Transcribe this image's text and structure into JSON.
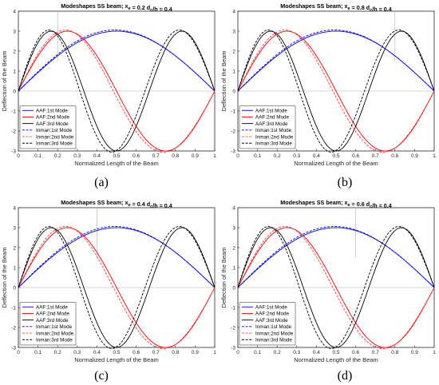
{
  "chart_data": [
    {
      "type": "line",
      "title": "Modeshapes SS beam; x",
      "title_sub": "e",
      "title_mid": " = 0.2   d",
      "title_sub2": "c",
      "title_tail": "/h = 0.4",
      "xlabel": "Normalized Length of the Beam",
      "ylabel": "Deflection of the Beam",
      "xlim": [
        0,
        1
      ],
      "ylim": [
        -3,
        4
      ],
      "xticks": [
        "0",
        "0.1",
        "0.2",
        "0.3",
        "0.4",
        "0.5",
        "0.6",
        "0.7",
        "0.8",
        "0.9",
        "1"
      ],
      "yticks": [
        "-3",
        "-2",
        "-1",
        "0",
        "1",
        "2",
        "3",
        "4"
      ],
      "grid": false,
      "legend_position": "lower-left",
      "crack_x": 0.2,
      "amplitude": 3,
      "series": [
        {
          "name": "AAF:1st Mode",
          "mode": 1,
          "color": "#0000ff",
          "dash": "solid"
        },
        {
          "name": "AAF:2nd Mode",
          "mode": 2,
          "color": "#ff0000",
          "dash": "solid"
        },
        {
          "name": "AAF:3rd Mode",
          "mode": 3,
          "color": "#000000",
          "dash": "solid"
        },
        {
          "name": "Inman:1st Mode",
          "mode": 1,
          "color": "#0000ff",
          "dash": "dashed"
        },
        {
          "name": "Inman:2nd Mode",
          "mode": 2,
          "color": "#ff4040",
          "dash": "dashed"
        },
        {
          "name": "Inman:3rd Mode",
          "mode": 3,
          "color": "#000000",
          "dash": "dashed"
        }
      ]
    },
    {
      "type": "line",
      "title": "Modeshapes SS beam; x",
      "title_sub": "e",
      "title_mid": " = 0.8   d",
      "title_sub2": "c",
      "title_tail": "/h = 0.4",
      "xlabel": "Normalized Length of the Beam",
      "ylabel": "Deflection of the Beam",
      "xlim": [
        0,
        1
      ],
      "ylim": [
        -3,
        4
      ],
      "xticks": [
        "0",
        "0.1",
        "0.2",
        "0.3",
        "0.4",
        "0.5",
        "0.6",
        "0.7",
        "0.8",
        "0.9",
        "1"
      ],
      "yticks": [
        "-3",
        "-2",
        "-1",
        "0",
        "1",
        "2",
        "3",
        "4"
      ],
      "grid": false,
      "legend_position": "lower-left",
      "crack_x": 0.8,
      "amplitude": 3,
      "series": [
        {
          "name": "AAF:1st Mode",
          "mode": 1,
          "color": "#0000ff",
          "dash": "solid"
        },
        {
          "name": "AAF:2nd Mode",
          "mode": 2,
          "color": "#ff0000",
          "dash": "solid"
        },
        {
          "name": "AAF:3rd Mode",
          "mode": 3,
          "color": "#000000",
          "dash": "solid"
        },
        {
          "name": "Inman:1st Mode",
          "mode": 1,
          "color": "#0000ff",
          "dash": "dashed"
        },
        {
          "name": "Inman:2nd Mode",
          "mode": 2,
          "color": "#ff4040",
          "dash": "dashed"
        },
        {
          "name": "Inman:3rd Mode",
          "mode": 3,
          "color": "#000000",
          "dash": "dashed"
        }
      ]
    },
    {
      "type": "line",
      "title": "Modeshapes SS beam; x",
      "title_sub": "e",
      "title_mid": " = 0.4   d",
      "title_sub2": "c",
      "title_tail": "/h = 0.4",
      "xlabel": "Normalized Length of the Beam",
      "ylabel": "Deflection of the Beam",
      "xlim": [
        0,
        1
      ],
      "ylim": [
        -3,
        4
      ],
      "xticks": [
        "0",
        "0.1",
        "0.2",
        "0.3",
        "0.4",
        "0.5",
        "0.6",
        "0.7",
        "0.8",
        "0.9",
        "1"
      ],
      "yticks": [
        "-3",
        "-2",
        "-1",
        "0",
        "1",
        "2",
        "3",
        "4"
      ],
      "grid": false,
      "legend_position": "lower-left",
      "crack_x": 0.4,
      "amplitude": 3,
      "series": [
        {
          "name": "AAF:1st Mode",
          "mode": 1,
          "color": "#0000ff",
          "dash": "solid"
        },
        {
          "name": "AAF:2nd Mode",
          "mode": 2,
          "color": "#ff0000",
          "dash": "solid"
        },
        {
          "name": "AAF:3rd Mode",
          "mode": 3,
          "color": "#000000",
          "dash": "solid"
        },
        {
          "name": "Inman:1st Mode",
          "mode": 1,
          "color": "#0000ff",
          "dash": "dashed"
        },
        {
          "name": "Inman:2nd Mode",
          "mode": 2,
          "color": "#ff4040",
          "dash": "dashed"
        },
        {
          "name": "Inman:3rd Mode",
          "mode": 3,
          "color": "#000000",
          "dash": "dashed"
        }
      ]
    },
    {
      "type": "line",
      "title": "Modeshapes SS beam; x",
      "title_sub": "e",
      "title_mid": " = 0.6   d",
      "title_sub2": "c",
      "title_tail": "/h = 0.4",
      "xlabel": "Normalized Length of the Beam",
      "ylabel": "Deflection of the Beam",
      "xlim": [
        0,
        1
      ],
      "ylim": [
        -3,
        4
      ],
      "xticks": [
        "0",
        "0.1",
        "0.2",
        "0.3",
        "0.4",
        "0.5",
        "0.6",
        "0.7",
        "0.8",
        "0.9",
        "1"
      ],
      "yticks": [
        "-3",
        "-2",
        "-1",
        "0",
        "1",
        "2",
        "3",
        "4"
      ],
      "grid": false,
      "legend_position": "lower-left",
      "crack_x": 0.6,
      "amplitude": 3,
      "series": [
        {
          "name": "AAF:1st Mode",
          "mode": 1,
          "color": "#0000ff",
          "dash": "solid"
        },
        {
          "name": "AAF:2nd Mode",
          "mode": 2,
          "color": "#ff0000",
          "dash": "solid"
        },
        {
          "name": "AAF:3rd Mode",
          "mode": 3,
          "color": "#000000",
          "dash": "solid"
        },
        {
          "name": "Inman:1st Mode",
          "mode": 1,
          "color": "#0000ff",
          "dash": "dashed"
        },
        {
          "name": "Inman:2nd Mode",
          "mode": 2,
          "color": "#ff4040",
          "dash": "dashed"
        },
        {
          "name": "Inman:3rd Mode",
          "mode": 3,
          "color": "#000000",
          "dash": "dashed"
        }
      ]
    }
  ],
  "captions": [
    "(a)",
    "(b)",
    "(c)",
    "(d)"
  ]
}
